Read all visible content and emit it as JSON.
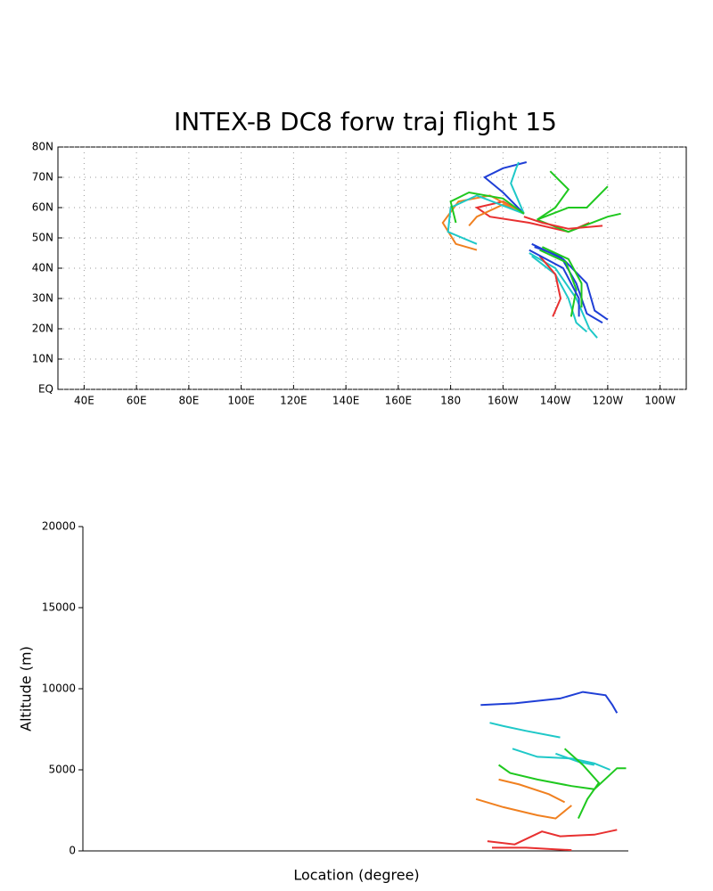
{
  "chart_data": [
    {
      "type": "map",
      "title": "INTEX-B DC8 forw traj flight 15",
      "xlim": [
        30,
        270
      ],
      "ylim": [
        0,
        80
      ],
      "grid": true,
      "xticks": [
        {
          "value": 40,
          "label": "40E"
        },
        {
          "value": 60,
          "label": "60E"
        },
        {
          "value": 80,
          "label": "80E"
        },
        {
          "value": 100,
          "label": "100E"
        },
        {
          "value": 120,
          "label": "120E"
        },
        {
          "value": 140,
          "label": "140E"
        },
        {
          "value": 160,
          "label": "160E"
        },
        180,
        {
          "value": 200,
          "label": "160W"
        },
        {
          "value": 220,
          "label": "140W"
        },
        {
          "value": 240,
          "label": "120W"
        },
        {
          "value": 260,
          "label": "100W"
        }
      ],
      "yticks": [
        {
          "value": 0,
          "label": "EQ"
        },
        {
          "value": 10,
          "label": "10N"
        },
        {
          "value": 20,
          "label": "20N"
        },
        {
          "value": 30,
          "label": "30N"
        },
        {
          "value": 40,
          "label": "40N"
        },
        {
          "value": 50,
          "label": "50N"
        },
        {
          "value": 60,
          "label": "60N"
        },
        {
          "value": 70,
          "label": "70N"
        },
        {
          "value": 80,
          "label": "80N"
        }
      ],
      "series": [
        {
          "color": "#1f3fd6",
          "x": [
            208,
            200,
            193,
            200,
            209
          ],
          "values": [
            58,
            65,
            70,
            73,
            75
          ]
        },
        {
          "color": "#1fc8c8",
          "x": [
            208,
            203,
            205,
            206
          ],
          "values": [
            58,
            68,
            73,
            75
          ]
        },
        {
          "color": "#e83030",
          "x": [
            208,
            200,
            190,
            195,
            210,
            225,
            233
          ],
          "values": [
            58,
            62,
            60,
            57,
            55,
            52,
            55
          ]
        },
        {
          "color": "#f08020",
          "x": [
            208,
            200,
            190,
            187
          ],
          "values": [
            58,
            61,
            57,
            54
          ]
        },
        {
          "color": "#f08020",
          "x": [
            208,
            195,
            183,
            177,
            182,
            190
          ],
          "values": [
            58,
            64,
            62,
            55,
            48,
            46
          ]
        },
        {
          "color": "#1fc8c8",
          "x": [
            208,
            190,
            180,
            179,
            190
          ],
          "values": [
            58,
            64,
            60,
            52,
            48
          ]
        },
        {
          "color": "#1fc81f",
          "x": [
            208,
            200,
            187,
            180,
            182
          ],
          "values": [
            58,
            63,
            65,
            62,
            55
          ]
        },
        {
          "color": "#1fc81f",
          "x": [
            213,
            220,
            225,
            218
          ],
          "values": [
            56,
            60,
            66,
            72
          ]
        },
        {
          "color": "#1fc81f",
          "x": [
            213,
            225,
            232,
            240
          ],
          "values": [
            56,
            60,
            60,
            67
          ]
        },
        {
          "color": "#1fc81f",
          "x": [
            213,
            225,
            240,
            245
          ],
          "values": [
            56,
            52,
            57,
            58
          ]
        },
        {
          "color": "#e83030",
          "x": [
            208,
            215,
            225,
            238
          ],
          "values": [
            57,
            55,
            53,
            54
          ]
        },
        {
          "color": "#1f3fd6",
          "x": [
            211,
            223,
            232,
            235,
            240
          ],
          "values": [
            48,
            43,
            35,
            26,
            23
          ]
        },
        {
          "color": "#1f3fd6",
          "x": [
            212,
            222,
            228,
            232,
            238
          ],
          "values": [
            47,
            44,
            35,
            25,
            22
          ]
        },
        {
          "color": "#1fc8c8",
          "x": [
            210,
            220,
            228,
            233,
            236
          ],
          "values": [
            45,
            40,
            30,
            20,
            17
          ]
        },
        {
          "color": "#1fc8c8",
          "x": [
            211,
            220,
            225,
            228,
            232
          ],
          "values": [
            44,
            38,
            30,
            22,
            19
          ]
        },
        {
          "color": "#1fc81f",
          "x": [
            214,
            224,
            228,
            226
          ],
          "values": [
            46,
            42,
            33,
            24
          ]
        },
        {
          "color": "#1fc81f",
          "x": [
            215,
            225,
            230,
            230
          ],
          "values": [
            47,
            43,
            35,
            27
          ]
        },
        {
          "color": "#e83030",
          "x": [
            214,
            220,
            222,
            219
          ],
          "values": [
            44,
            38,
            30,
            24
          ]
        },
        {
          "color": "#1f3fd6",
          "x": [
            210,
            223,
            229,
            229
          ],
          "values": [
            46,
            40,
            30,
            24
          ]
        }
      ]
    },
    {
      "type": "line",
      "x_label": "Location (degree)",
      "y_label": "Altitude (m)",
      "xlim": [
        30,
        270
      ],
      "ylim": [
        0,
        20000
      ],
      "yticks": [
        0,
        5000,
        10000,
        15000,
        20000
      ],
      "series": [
        {
          "color": "#1f3fd6",
          "x": [
            205,
            220,
            240,
            250,
            260,
            263,
            265
          ],
          "values": [
            9000,
            9100,
            9400,
            9800,
            9600,
            9000,
            8500
          ]
        },
        {
          "color": "#1fc8c8",
          "x": [
            209,
            215,
            225,
            240
          ],
          "values": [
            7900,
            7700,
            7400,
            7000
          ]
        },
        {
          "color": "#1fc8c8",
          "x": [
            219,
            230,
            245,
            255,
            262
          ],
          "values": [
            6300,
            5800,
            5700,
            5400,
            5000
          ]
        },
        {
          "color": "#1fc8c8",
          "x": [
            238,
            248,
            255
          ],
          "values": [
            6000,
            5500,
            5300
          ]
        },
        {
          "color": "#1fc81f",
          "x": [
            213,
            218,
            230,
            245,
            255,
            265,
            269
          ],
          "values": [
            5300,
            4800,
            4400,
            4000,
            3800,
            5100,
            5100
          ]
        },
        {
          "color": "#1fc81f",
          "x": [
            242,
            250,
            257,
            252,
            248
          ],
          "values": [
            6300,
            5300,
            4200,
            3200,
            2000
          ]
        },
        {
          "color": "#f08020",
          "x": [
            203,
            215,
            230,
            238,
            245
          ],
          "values": [
            3200,
            2700,
            2200,
            2000,
            2800
          ]
        },
        {
          "color": "#f08020",
          "x": [
            213,
            222,
            235,
            242
          ],
          "values": [
            4400,
            4100,
            3500,
            3000
          ]
        },
        {
          "color": "#e83030",
          "x": [
            208,
            220,
            232,
            240,
            255,
            265
          ],
          "values": [
            600,
            400,
            1200,
            900,
            1000,
            1300
          ]
        },
        {
          "color": "#e83030",
          "x": [
            210,
            225,
            238,
            245
          ],
          "values": [
            200,
            200,
            100,
            50
          ]
        }
      ]
    }
  ]
}
